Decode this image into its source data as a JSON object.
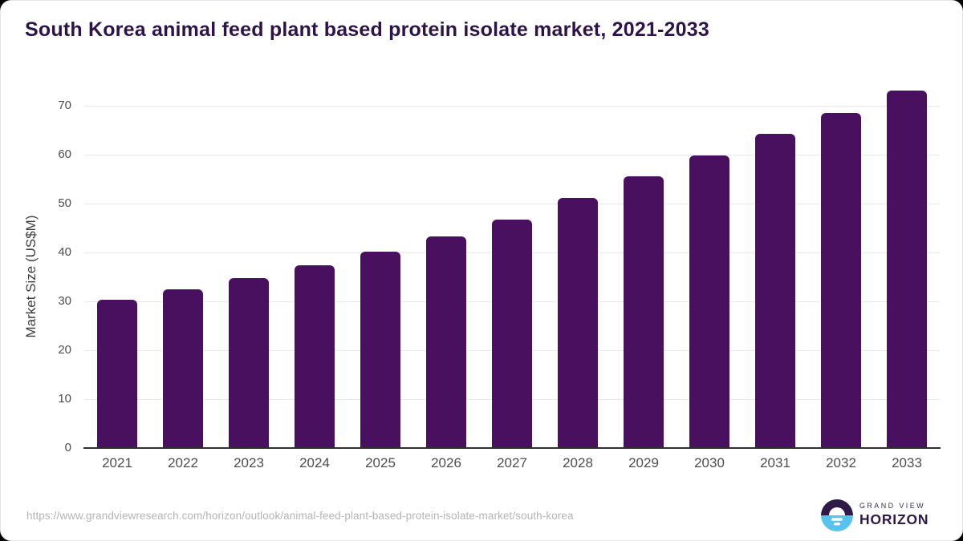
{
  "chart_data": {
    "type": "bar",
    "title": "South Korea animal feed plant based protein isolate market, 2021-2033",
    "ylabel": "Market Size (US$M)",
    "xlabel": "",
    "categories": [
      "2021",
      "2022",
      "2023",
      "2024",
      "2025",
      "2026",
      "2027",
      "2028",
      "2029",
      "2030",
      "2031",
      "2032",
      "2033"
    ],
    "values": [
      30.4,
      32.5,
      34.7,
      37.4,
      40.1,
      43.3,
      46.8,
      51.2,
      55.5,
      59.8,
      64.2,
      68.6,
      73.1
    ],
    "ylim": [
      0,
      75
    ],
    "yticks": [
      0,
      10,
      20,
      30,
      40,
      50,
      60,
      70
    ],
    "grid": "horizontal",
    "legend_position": "none",
    "bar_color": "#4a1060",
    "axis_color": "#2e2e2e",
    "gridline_color": "#e9e9e9",
    "tick_label_color": "#4d4d4d",
    "title_color": "#2d1347"
  },
  "footer": {
    "source_url": "https://www.grandviewresearch.com/horizon/outlook/animal-feed-plant-based-protein-isolate-market/south-korea",
    "logo": {
      "line1": "GRAND VIEW",
      "line2": "HORIZON",
      "purple": "#2e1a47",
      "blue": "#55c3ee"
    }
  }
}
